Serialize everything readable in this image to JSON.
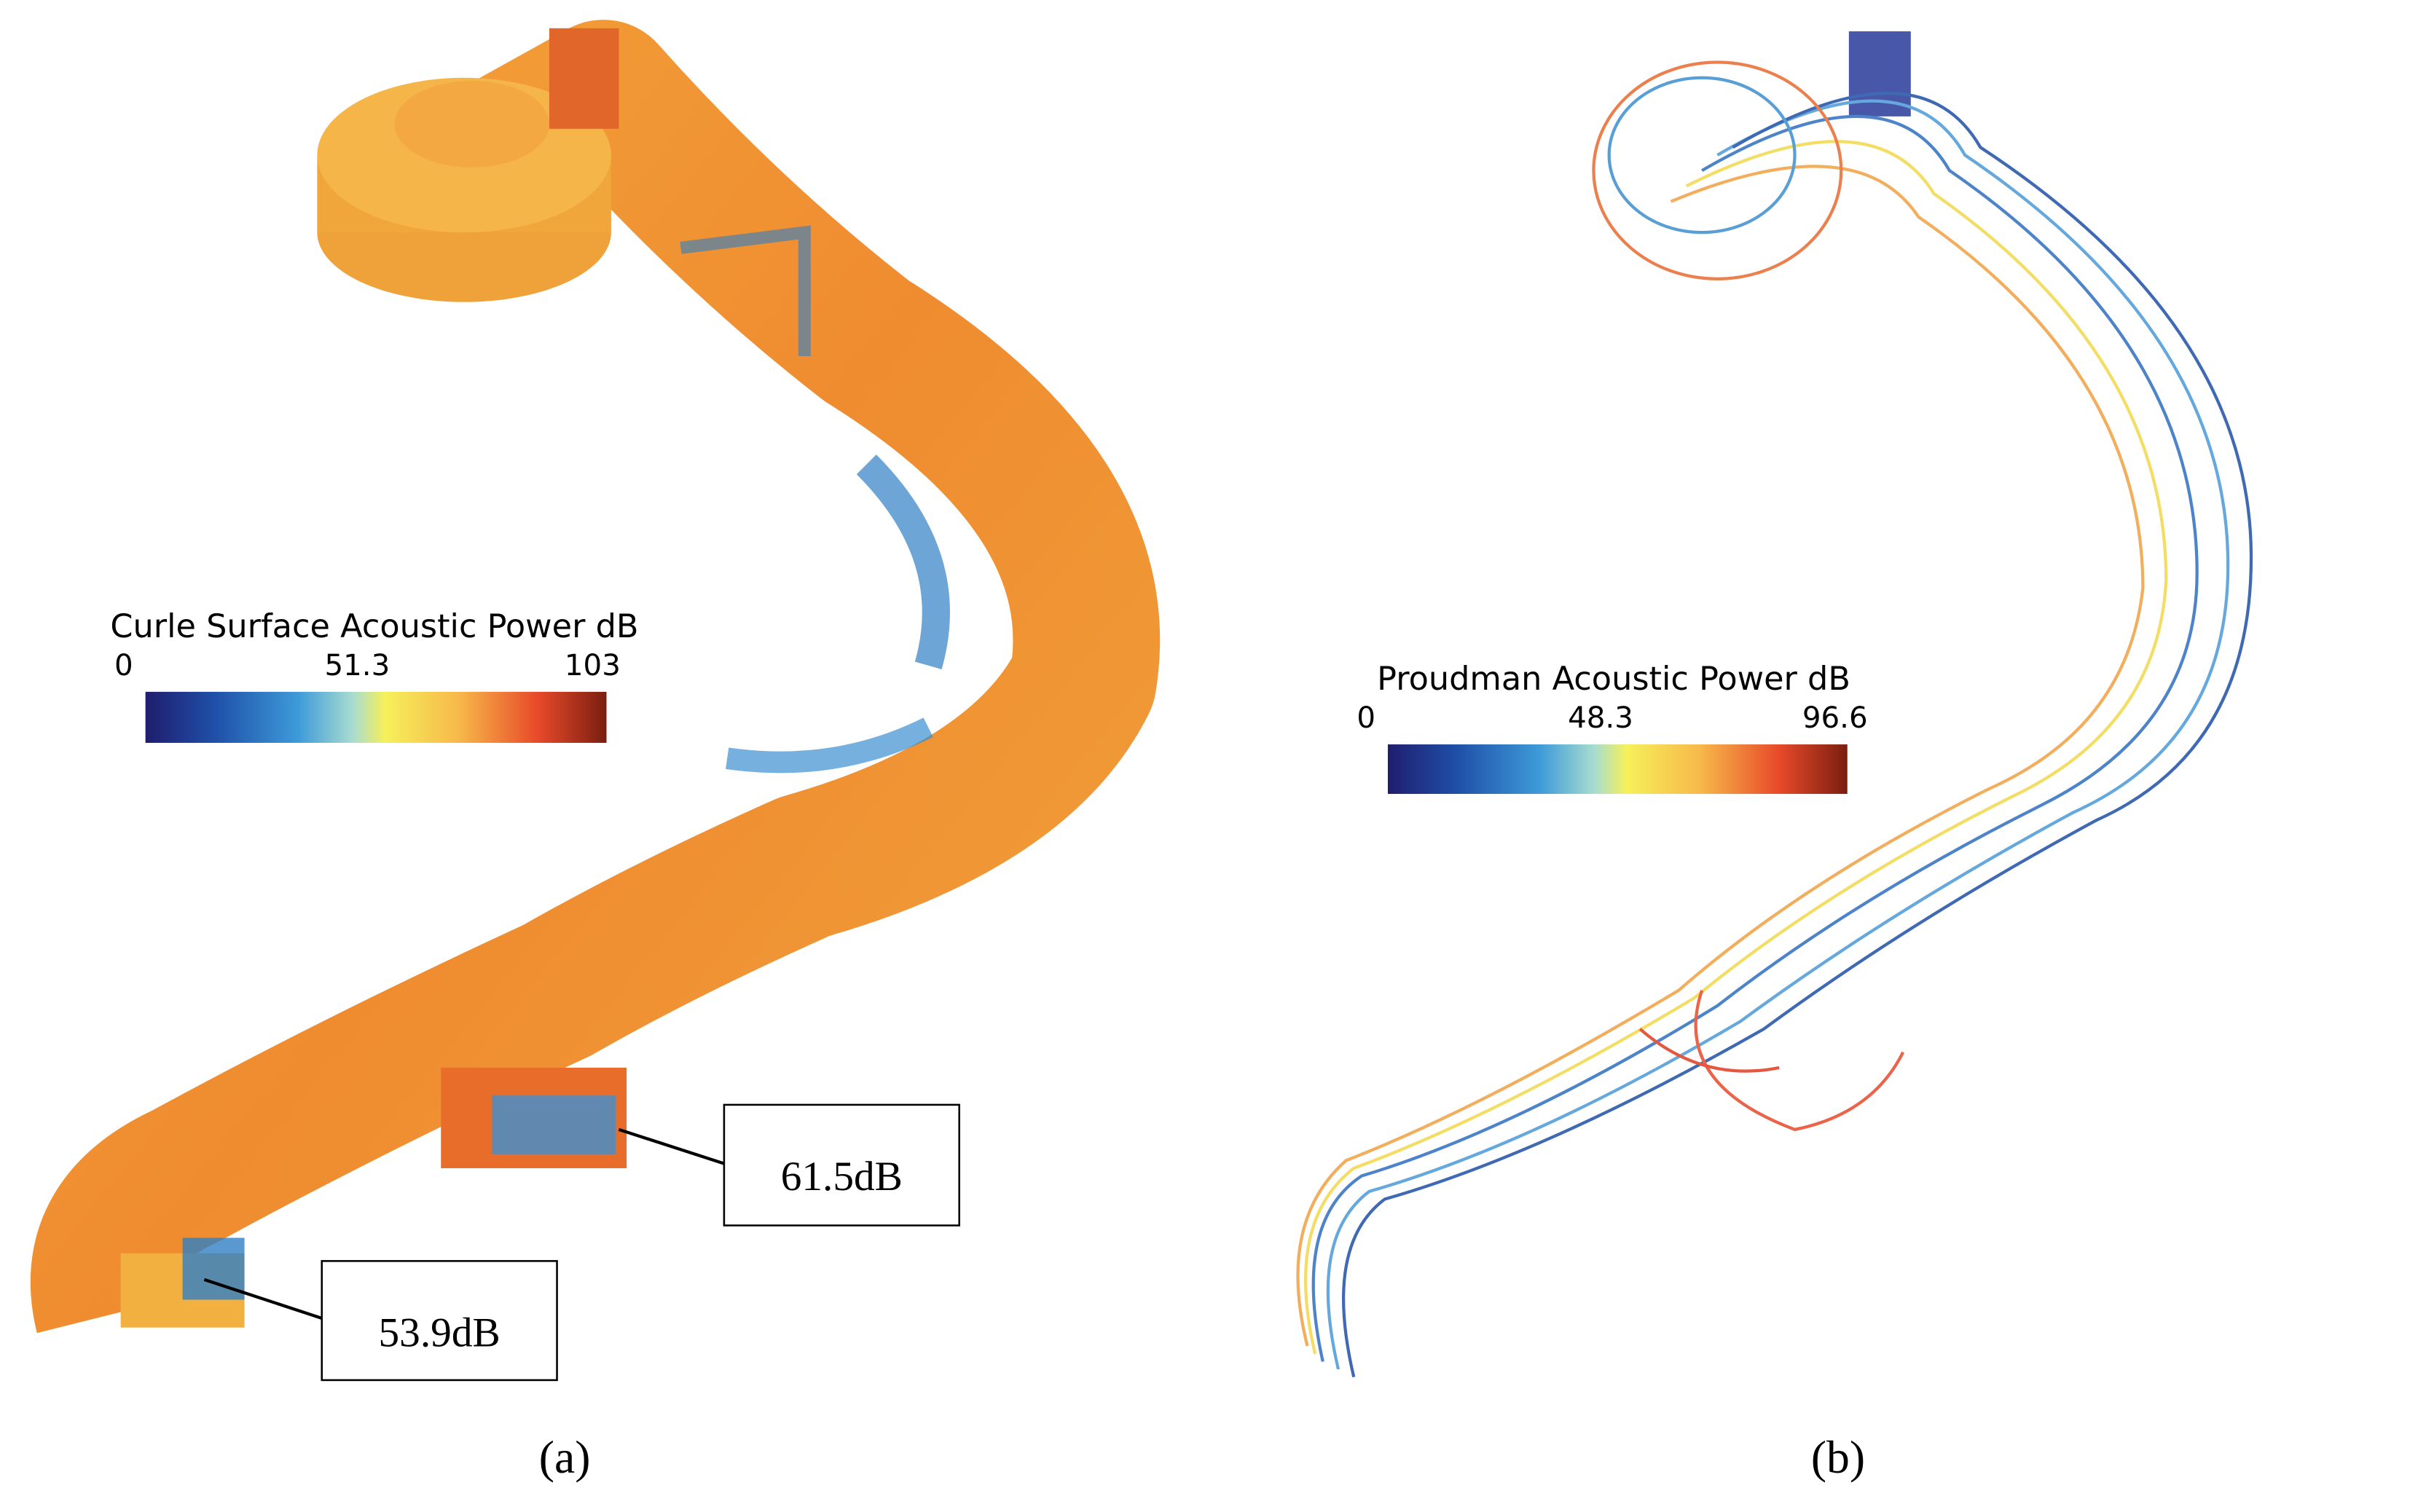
{
  "panels": [
    {
      "colorbar": {
        "label": "Curle Surface Acoustic Power dB",
        "ticks": [
          0,
          51.3,
          103
        ]
      },
      "annotations": [
        "61.5dB",
        "53.9dB"
      ],
      "caption": "(a)"
    },
    {
      "colorbar": {
        "label": "Proudman Acoustic Power dB",
        "ticks": [
          0,
          48.3,
          96.6
        ]
      },
      "caption": "(b)"
    }
  ]
}
